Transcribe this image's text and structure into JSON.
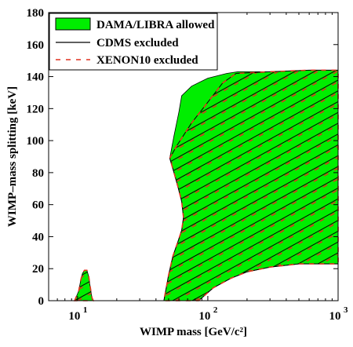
{
  "chart_data": {
    "type": "area",
    "xlabel": "WIMP mass [GeV/c²]",
    "ylabel": "WIMP–mass splitting [keV]",
    "x_scale": "log",
    "xlim": [
      6,
      1000
    ],
    "ylim": [
      0,
      180
    ],
    "x_ticks": [
      10,
      100,
      1000
    ],
    "x_tick_labels": [
      {
        "base": "10",
        "exp": "1"
      },
      {
        "base": "10",
        "exp": "2"
      },
      {
        "base": "10",
        "exp": "3"
      }
    ],
    "y_ticks": [
      0,
      20,
      40,
      60,
      80,
      100,
      120,
      140,
      160,
      180
    ],
    "grid": false,
    "legend_position": "top-left",
    "series": [
      {
        "name": "DAMA/LIBRA allowed",
        "style": "filled-region",
        "color": "#00ee00",
        "regions": [
          {
            "label": "low-mass-island",
            "points": [
              [
                9.5,
                0
              ],
              [
                10.2,
                6
              ],
              [
                10.6,
                13
              ],
              [
                10.9,
                17
              ],
              [
                11.3,
                19
              ],
              [
                11.8,
                19
              ],
              [
                12.2,
                15
              ],
              [
                12.5,
                9
              ],
              [
                12.9,
                2
              ],
              [
                13.2,
                0
              ]
            ]
          },
          {
            "label": "main-region",
            "points": [
              [
                46,
                0
              ],
              [
                50,
                16
              ],
              [
                54,
                28
              ],
              [
                59,
                37
              ],
              [
                63,
                44
              ],
              [
                65,
                52
              ],
              [
                63,
                62
              ],
              [
                59,
                71
              ],
              [
                55,
                80
              ],
              [
                51,
                89
              ],
              [
                55,
                103
              ],
              [
                60,
                118
              ],
              [
                63,
                128
              ],
              [
                75,
                134
              ],
              [
                100,
                139
              ],
              [
                140,
                142
              ],
              [
                170,
                143
              ],
              [
                300,
                143
              ],
              [
                600,
                144
              ],
              [
                1000,
                144
              ],
              [
                1000,
                23
              ],
              [
                500,
                23
              ],
              [
                300,
                21
              ],
              [
                200,
                18
              ],
              [
                150,
                14
              ],
              [
                110,
                8
              ],
              [
                85,
                0
              ]
            ]
          }
        ]
      },
      {
        "name": "CDMS excluded",
        "style": "solid-hatch",
        "color": "#000000",
        "regions": [
          {
            "label": "cdms-main",
            "points": [
              [
                51,
                89
              ],
              [
                58,
                97
              ],
              [
                75,
                111
              ],
              [
                100,
                124
              ],
              [
                130,
                136
              ],
              [
                165,
                142
              ],
              [
                300,
                143
              ],
              [
                600,
                144
              ],
              [
                1000,
                144
              ],
              [
                1000,
                23
              ],
              [
                500,
                23
              ],
              [
                300,
                21
              ],
              [
                200,
                18
              ],
              [
                150,
                14
              ],
              [
                110,
                8
              ],
              [
                85,
                0
              ],
              [
                46,
                0
              ],
              [
                50,
                16
              ],
              [
                54,
                28
              ],
              [
                59,
                37
              ],
              [
                63,
                44
              ],
              [
                65,
                52
              ],
              [
                63,
                62
              ],
              [
                59,
                71
              ],
              [
                55,
                80
              ]
            ]
          },
          {
            "label": "cdms-island",
            "points": [
              [
                9.5,
                0
              ],
              [
                10.2,
                6
              ],
              [
                10.6,
                13
              ],
              [
                10.9,
                17
              ],
              [
                11.3,
                19
              ],
              [
                11.8,
                19
              ],
              [
                12.2,
                15
              ],
              [
                12.5,
                9
              ],
              [
                12.9,
                2
              ],
              [
                13.2,
                0
              ]
            ]
          }
        ]
      },
      {
        "name": "XENON10 excluded",
        "style": "dashed-hatch",
        "color": "#e0301e"
      }
    ]
  }
}
